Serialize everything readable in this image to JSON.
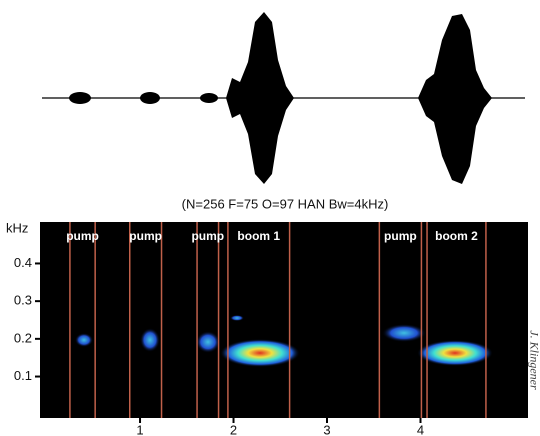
{
  "chart_data": {
    "type": "spectrogram",
    "title": "(N=256 F=75 O=97 HAN Bw=4kHz)",
    "y_label": "kHz",
    "xlim": [
      -0.07,
      5.15
    ],
    "xticks": [
      1,
      2,
      3,
      4
    ],
    "ylim": [
      -0.01,
      0.51
    ],
    "yticks": [
      0.1,
      0.2,
      0.3,
      0.4
    ],
    "segment_color": "#c0604a",
    "segments": [
      {
        "label": "pump",
        "start": 0.25,
        "end": 0.52
      },
      {
        "label": "pump",
        "start": 0.89,
        "end": 1.23
      },
      {
        "label": "pump",
        "start": 1.61,
        "end": 1.84
      },
      {
        "label": "boom 1",
        "start": 1.94,
        "end": 2.6
      },
      {
        "label": "pump",
        "start": 3.56,
        "end": 4.01
      },
      {
        "label": "boom 2",
        "start": 4.07,
        "end": 4.7
      }
    ]
  },
  "credit": "J. Klingener"
}
